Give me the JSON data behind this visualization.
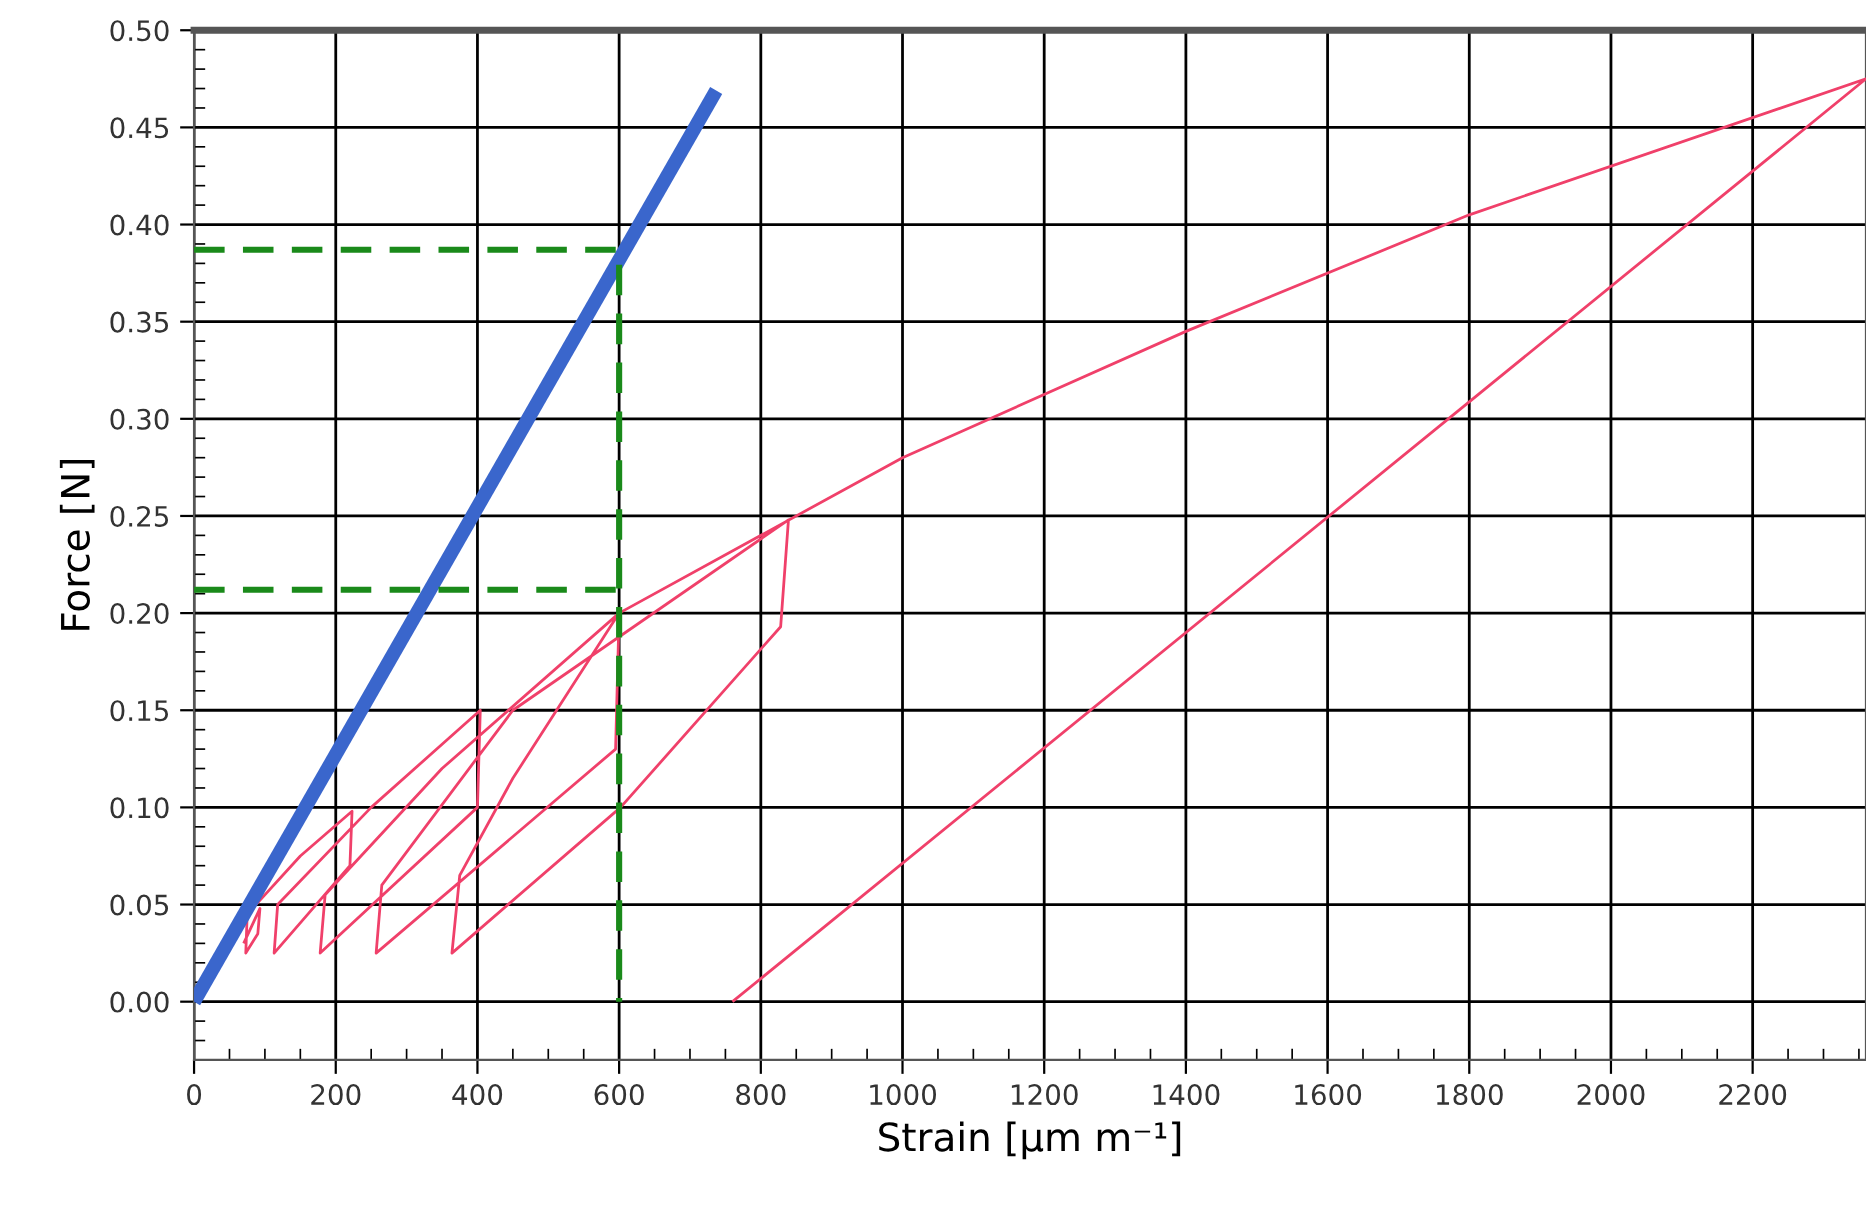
{
  "chart_data": {
    "type": "line",
    "xlabel": "Strain [μm m⁻¹]",
    "ylabel": "Force [N]",
    "xlim": [
      0,
      2360
    ],
    "ylim": [
      -0.03,
      0.5
    ],
    "xticks": [
      0,
      200,
      400,
      600,
      800,
      1000,
      1200,
      1400,
      1600,
      1800,
      2000,
      2200
    ],
    "yticks": [
      {
        "value": 0,
        "label": "0.00"
      },
      {
        "value": 0.05,
        "label": "0.05"
      },
      {
        "value": 0.1,
        "label": "0.10"
      },
      {
        "value": 0.15,
        "label": "0.15"
      },
      {
        "value": 0.2,
        "label": "0.20"
      },
      {
        "value": 0.25,
        "label": "0.25"
      },
      {
        "value": 0.3,
        "label": "0.30"
      },
      {
        "value": 0.35,
        "label": "0.35"
      },
      {
        "value": 0.4,
        "label": "0.40"
      },
      {
        "value": 0.45,
        "label": "0.45"
      },
      {
        "value": 0.5,
        "label": "0.50"
      }
    ],
    "grid": true,
    "marker": "none",
    "series": [
      {
        "color": "#f0406a",
        "line_style": "solid",
        "x": [
          70,
          93,
          90,
          73,
          75,
          150,
          223,
          220,
          113,
          118,
          250,
          404,
          400,
          178,
          185,
          350,
          600,
          595,
          257,
          265,
          450,
          839,
          828,
          602,
          364,
          375,
          450,
          600,
          1000,
          1400,
          1800,
          2360,
          760
        ],
        "values": [
          0.03,
          0.048,
          0.035,
          0.025,
          0.045,
          0.075,
          0.098,
          0.07,
          0.025,
          0.05,
          0.1,
          0.15,
          0.1,
          0.025,
          0.055,
          0.12,
          0.2,
          0.13,
          0.025,
          0.06,
          0.15,
          0.248,
          0.193,
          0.1,
          0.025,
          0.065,
          0.115,
          0.2,
          0.28,
          0.345,
          0.405,
          0.475,
          0
        ]
      },
      {
        "color": "#3a66cc",
        "line_style": "solid",
        "x": [
          0,
          737
        ],
        "values": [
          0,
          0.469
        ]
      },
      {
        "color": "#1a8a1a",
        "line_style": "dashed",
        "x": [
          0,
          600,
          600
        ],
        "values": [
          0.387,
          0.387,
          0
        ]
      },
      {
        "color": "#1a8a1a",
        "line_style": "dashed",
        "x": [
          0,
          600
        ],
        "values": [
          0.212,
          0.212
        ]
      }
    ]
  }
}
